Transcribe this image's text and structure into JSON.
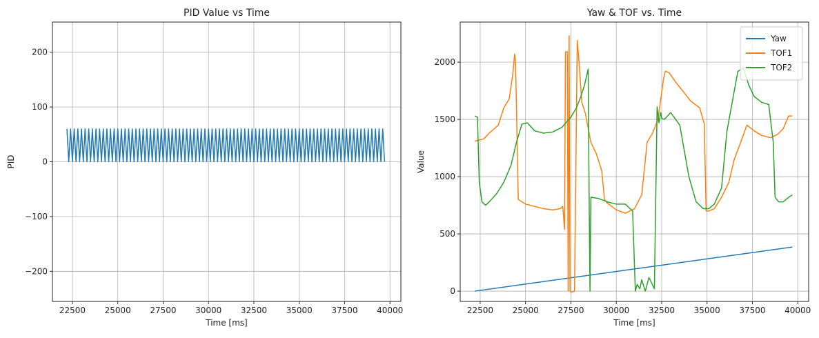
{
  "chart_data": [
    {
      "type": "line",
      "title": "PID Value vs Time",
      "xlabel": "Time [ms]",
      "ylabel": "PID",
      "xlim": [
        21400,
        40600
      ],
      "ylim": [
        -255,
        255
      ],
      "xticks": [
        22500,
        25000,
        27500,
        30000,
        32500,
        35000,
        37500,
        40000
      ],
      "xtick_labels": [
        "22500",
        "25000",
        "27500",
        "30000",
        "32500",
        "35000",
        "37500",
        "40000"
      ],
      "yticks": [
        -200,
        -100,
        0,
        100,
        200
      ],
      "ytick_labels": [
        "−200",
        "−100",
        "0",
        "100",
        "200"
      ],
      "grid": true,
      "series": [
        {
          "color": "#1f77b4",
          "pattern": {
            "x_start": 22200,
            "x_end": 39700,
            "half_period": 100,
            "low": 0,
            "high": 60
          }
        }
      ]
    },
    {
      "type": "line",
      "title": "Yaw & TOF vs. Time",
      "xlabel": "Time [ms]",
      "ylabel": "Value",
      "xlim": [
        21400,
        40600
      ],
      "ylim": [
        -90,
        2350
      ],
      "xticks": [
        22500,
        25000,
        27500,
        30000,
        32500,
        35000,
        37500,
        40000
      ],
      "xtick_labels": [
        "22500",
        "25000",
        "27500",
        "30000",
        "32500",
        "35000",
        "37500",
        "40000"
      ],
      "yticks": [
        0,
        500,
        1000,
        1500,
        2000
      ],
      "ytick_labels": [
        "0",
        "500",
        "1000",
        "1500",
        "2000"
      ],
      "grid": true,
      "legend_position": "top-right",
      "series": [
        {
          "name": "Yaw",
          "color": "#1f77b4",
          "x": [
            22200,
            39700
          ],
          "y": [
            0,
            385
          ]
        },
        {
          "name": "TOF1",
          "color": "#ff7f0e",
          "x": [
            22200,
            22700,
            23000,
            23500,
            23800,
            24100,
            24300,
            24400,
            24450,
            24600,
            25000,
            25500,
            26000,
            26500,
            26900,
            27050,
            27150,
            27200,
            27300,
            27350,
            27400,
            27450,
            27500,
            27700,
            27850,
            27950,
            28100,
            28300,
            28600,
            28900,
            29200,
            29350,
            29500,
            30000,
            30500,
            31000,
            31400,
            31700,
            32000,
            32300,
            32600,
            32700,
            32900,
            33300,
            33700,
            34100,
            34600,
            34850,
            34950,
            35100,
            35400,
            35800,
            36200,
            36500,
            36900,
            37200,
            37600,
            38000,
            38500,
            38900,
            39200,
            39500,
            39700
          ],
          "y": [
            1310,
            1330,
            1380,
            1450,
            1600,
            1680,
            1900,
            2070,
            2000,
            800,
            760,
            740,
            720,
            710,
            720,
            740,
            540,
            2090,
            2090,
            0,
            2230,
            0,
            -10,
            0,
            2190,
            2000,
            1650,
            1550,
            1300,
            1200,
            1050,
            800,
            770,
            710,
            680,
            720,
            840,
            1300,
            1380,
            1500,
            1850,
            1920,
            1910,
            1820,
            1740,
            1660,
            1600,
            1460,
            700,
            700,
            720,
            820,
            950,
            1150,
            1320,
            1450,
            1400,
            1360,
            1340,
            1370,
            1420,
            1530,
            1530
          ]
        },
        {
          "name": "TOF2",
          "color": "#2ca02c",
          "x": [
            22200,
            22350,
            22450,
            22600,
            22800,
            23000,
            23400,
            23800,
            24200,
            24500,
            24800,
            25100,
            25500,
            26000,
            26500,
            27000,
            27500,
            27800,
            28050,
            28250,
            28450,
            28500,
            28550,
            28600,
            29000,
            29500,
            30000,
            30500,
            30900,
            31050,
            31150,
            31300,
            31400,
            31600,
            31800,
            32100,
            32250,
            32350,
            32450,
            32500,
            32650,
            33000,
            33500,
            34000,
            34400,
            34800,
            35100,
            35400,
            35800,
            36100,
            36400,
            36700,
            37000,
            37300,
            37600,
            38000,
            38400,
            38650,
            38750,
            38950,
            39200,
            39500,
            39700
          ],
          "y": [
            1530,
            1520,
            950,
            780,
            750,
            780,
            850,
            950,
            1100,
            1300,
            1460,
            1470,
            1400,
            1380,
            1390,
            1430,
            1520,
            1600,
            1700,
            1800,
            1940,
            900,
            0,
            820,
            810,
            780,
            760,
            760,
            700,
            0,
            60,
            20,
            100,
            0,
            120,
            20,
            1610,
            1470,
            1560,
            1510,
            1500,
            1560,
            1450,
            1000,
            780,
            720,
            720,
            760,
            900,
            1400,
            1660,
            1920,
            1950,
            1800,
            1700,
            1650,
            1630,
            1300,
            820,
            780,
            780,
            820,
            840
          ]
        }
      ]
    }
  ]
}
